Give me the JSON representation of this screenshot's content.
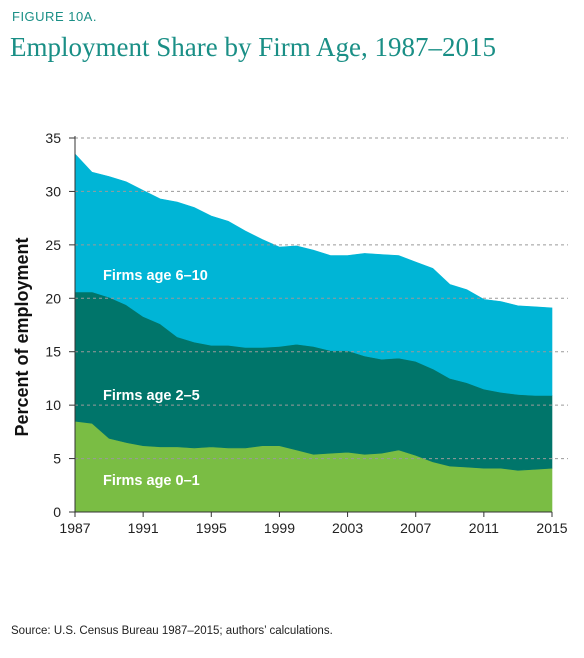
{
  "figure_label": "FIGURE 10A.",
  "source": "Source: U.S. Census Bureau 1987–2015; authors’ calculations.",
  "chart_data": {
    "type": "area",
    "stacked": true,
    "title": "Employment Share by Firm Age, 1987–2015",
    "xlabel": "",
    "ylabel": "Percent of employment",
    "ylim": [
      0,
      35
    ],
    "xlim": [
      1987,
      2015
    ],
    "yticks": [
      0,
      5,
      10,
      15,
      20,
      25,
      30,
      35
    ],
    "xticks": [
      1987,
      1991,
      1995,
      1999,
      2003,
      2007,
      2011,
      2015
    ],
    "grid": "horizontal dashed",
    "legend": "inline labels",
    "x": [
      1987,
      1988,
      1989,
      1990,
      1991,
      1992,
      1993,
      1994,
      1995,
      1996,
      1997,
      1998,
      1999,
      2000,
      2001,
      2002,
      2003,
      2004,
      2005,
      2006,
      2007,
      2008,
      2009,
      2010,
      2011,
      2012,
      2013,
      2014,
      2015
    ],
    "series": [
      {
        "name": "Firms age 0–1",
        "color": "#7abd44",
        "values": [
          8.5,
          8.3,
          6.9,
          6.5,
          6.2,
          6.1,
          6.1,
          6.0,
          6.1,
          6.0,
          6.0,
          6.2,
          6.2,
          5.8,
          5.4,
          5.5,
          5.6,
          5.4,
          5.5,
          5.8,
          5.3,
          4.7,
          4.3,
          4.2,
          4.1,
          4.1,
          3.9,
          4.0,
          4.1
        ]
      },
      {
        "name": "Firms age 2–5",
        "color": "#00756a",
        "values": [
          12.1,
          12.3,
          13.2,
          12.9,
          12.1,
          11.5,
          10.3,
          9.9,
          9.5,
          9.6,
          9.4,
          9.2,
          9.3,
          9.9,
          10.1,
          9.6,
          9.5,
          9.2,
          8.8,
          8.6,
          8.8,
          8.7,
          8.2,
          7.9,
          7.4,
          7.1,
          7.1,
          6.9,
          6.8
        ]
      },
      {
        "name": "Firms age 6–10",
        "color": "#00b5d6",
        "values": [
          12.9,
          11.2,
          11.3,
          11.5,
          11.8,
          11.7,
          12.6,
          12.6,
          12.1,
          11.6,
          10.9,
          10.1,
          9.3,
          9.2,
          9.0,
          8.9,
          8.9,
          9.6,
          9.8,
          9.6,
          9.3,
          9.4,
          8.8,
          8.7,
          8.4,
          8.5,
          8.3,
          8.3,
          8.2
        ]
      }
    ]
  }
}
